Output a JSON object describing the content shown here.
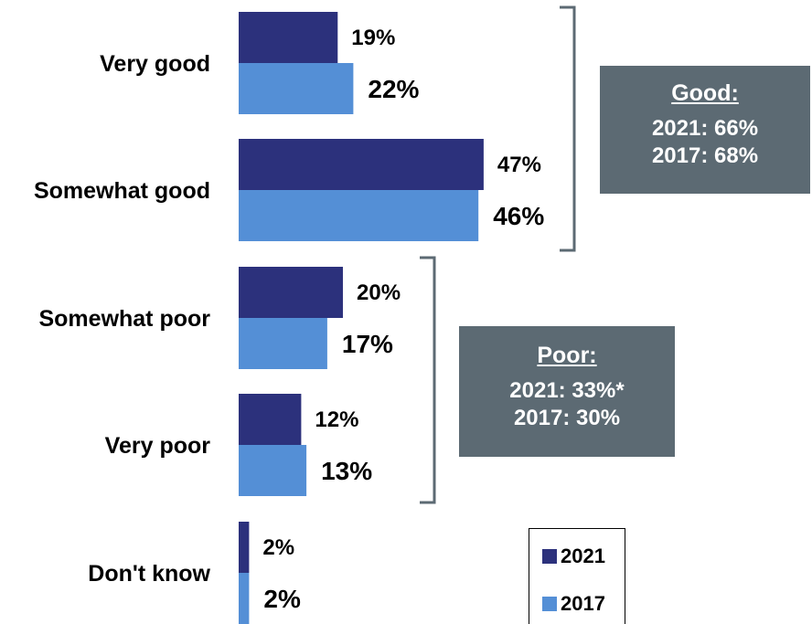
{
  "chart_data": {
    "type": "bar",
    "orientation": "horizontal",
    "categories": [
      "Very good",
      "Somewhat good",
      "Somewhat poor",
      "Very poor",
      "Don't know"
    ],
    "series": [
      {
        "name": "2021",
        "values": [
          19,
          47,
          20,
          12,
          2
        ],
        "labels": [
          "19%",
          "47%",
          "20%",
          "12%",
          "2%"
        ],
        "color": "#2c317c"
      },
      {
        "name": "2017",
        "values": [
          22,
          46,
          17,
          13,
          2
        ],
        "labels": [
          "22%",
          "46%",
          "17%",
          "13%",
          "2%"
        ],
        "color": "#548fd6"
      }
    ],
    "legend_position": "bottom-right",
    "grid": false
  },
  "summary_boxes": {
    "good": {
      "header": "Good:",
      "line1": "2021: 66%",
      "line2": "2017: 68%"
    },
    "poor": {
      "header": "Poor:",
      "line1": "2021: 33%*",
      "line2": "2017: 30%"
    }
  },
  "colors": {
    "box_bg": "#5c6a73",
    "bracket": "#5c6a73"
  }
}
